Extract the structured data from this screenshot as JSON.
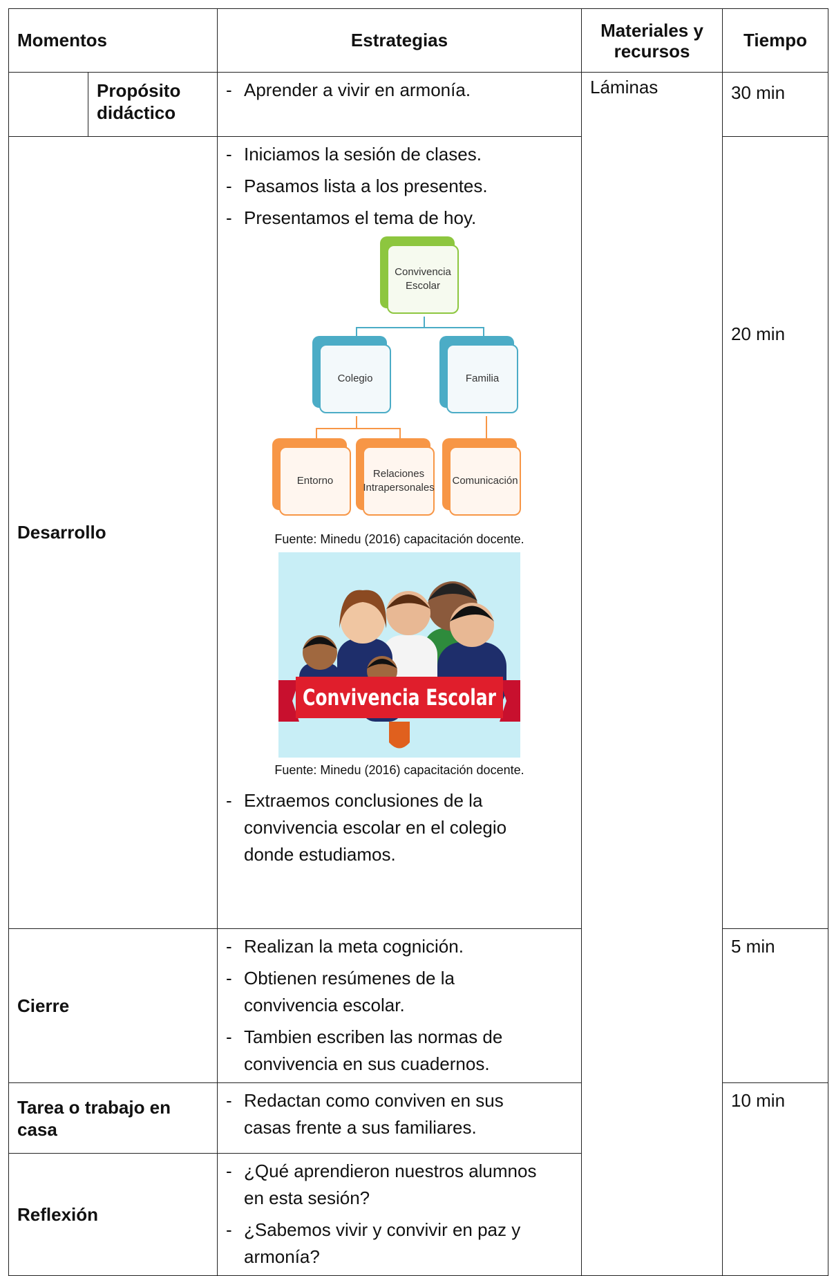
{
  "table": {
    "header": [
      "Momentos",
      "Estrategias",
      "Materiales y recursos",
      "Tiempo"
    ],
    "proposito": {
      "moment": "Propósito didáctico",
      "strategies": [
        "Aprender a vivir en armonía."
      ],
      "materials": "Láminas",
      "time": "30 min"
    },
    "desarrollo": {
      "moment": "Desarrollo",
      "strategies_before": [
        "Iniciamos la sesión de clases.",
        "Pasamos lista a los presentes.",
        "Presentamos el tema de hoy."
      ],
      "diagram": {
        "root": "Convivencia Escolar",
        "level1": [
          "Colegio",
          "Familia"
        ],
        "level2": [
          "Entorno",
          "Relaciones Intrapersonales",
          "Comunicación"
        ]
      },
      "diagram_caption": "Fuente: Minedu (2016) capacitación docente.",
      "image_banner": "Convivencia Escolar",
      "image_caption": "Fuente: Minedu (2016) capacitación docente.",
      "strategies_after": [
        "Extraemos conclusiones de la convivencia escolar en el colegio donde estudiamos."
      ],
      "time": "20 min"
    },
    "cierre": {
      "moment": "Cierre",
      "strategies": [
        "Realizan la meta cognición.",
        "Obtienen resúmenes de la convivencia escolar.",
        "Tambien escriben las normas de convivencia en sus cuadernos."
      ],
      "time": "5 min"
    },
    "tarea": {
      "moment": "Tarea o trabajo en casa",
      "strategies": [
        "Redactan como conviven en sus casas frente a sus familiares."
      ],
      "time": "10 min"
    },
    "reflexion": {
      "moment": "Reflexión",
      "strategies": [
        "¿Qué aprendieron nuestros alumnos en esta sesión?",
        "¿Sabemos vivir y convivir en paz y armonía?"
      ]
    }
  }
}
